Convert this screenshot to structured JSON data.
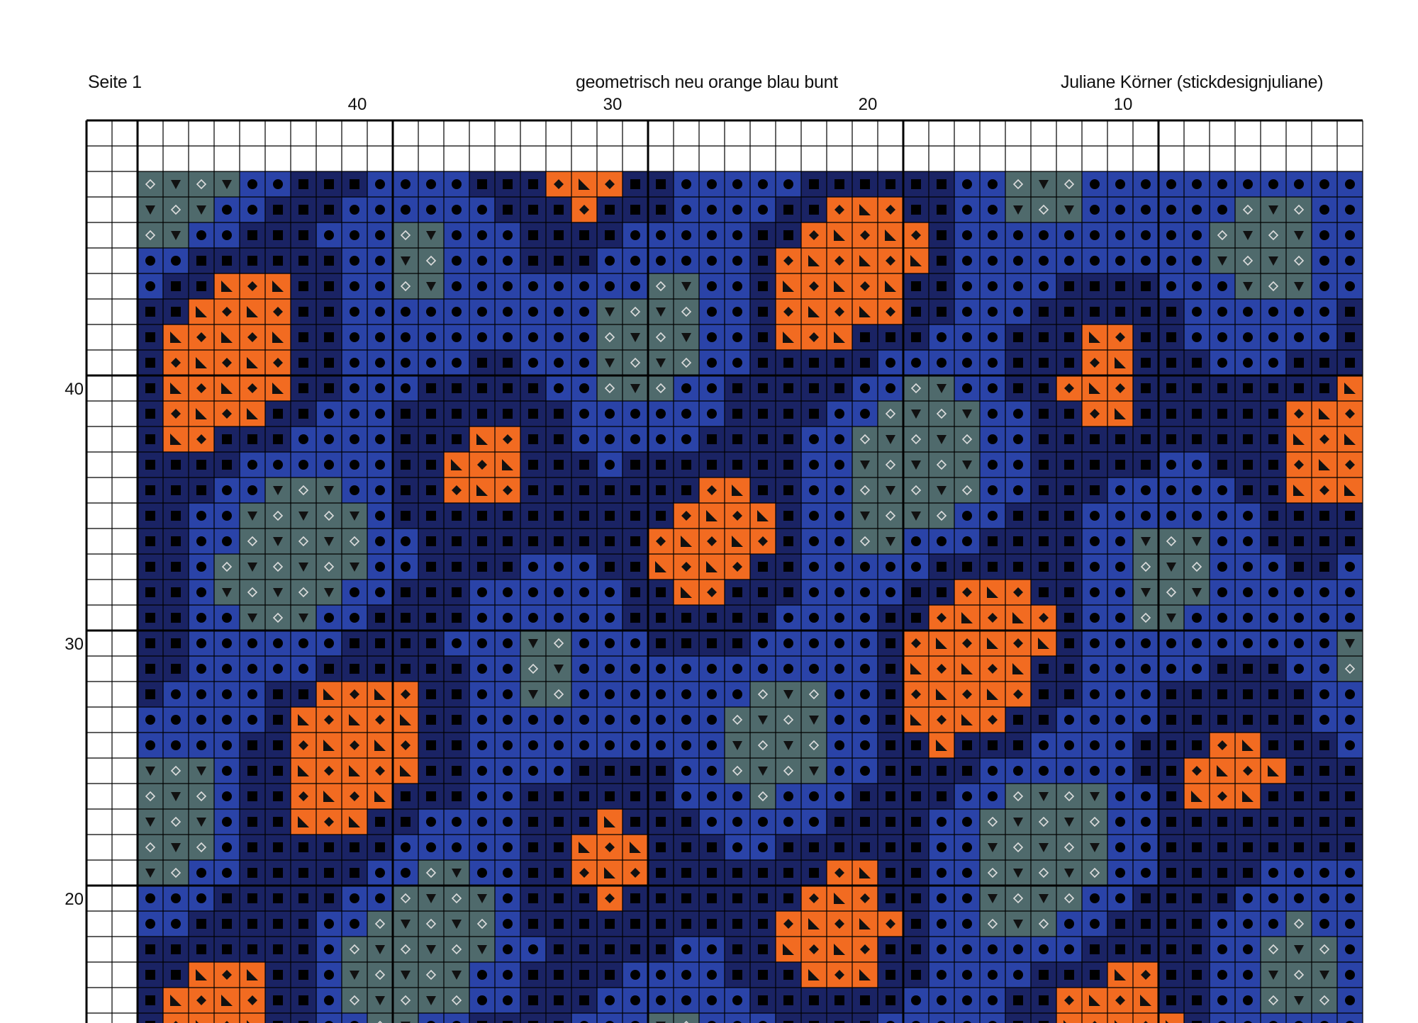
{
  "header": {
    "page_label": "Seite 1",
    "title": "geometrisch neu orange blau bunt",
    "author": "Juliane Körner (stickdesignjuliane)"
  },
  "column_numbers": [
    "40",
    "30",
    "20",
    "10"
  ],
  "row_numbers": [
    "40",
    "30",
    "20"
  ],
  "palette": {
    "orange": "#f26b21",
    "navy": "#1a2364",
    "blue": "#2a43a8",
    "gray": "#4f6a6c",
    "grid_line": "#000000"
  },
  "symbols": {
    "orange": [
      "diamond-icon",
      "triangle-corner-icon"
    ],
    "navy": "square-icon",
    "blue": "circle-icon",
    "gray": [
      "diamond-outline-icon",
      "triangle-down-icon"
    ]
  }
}
